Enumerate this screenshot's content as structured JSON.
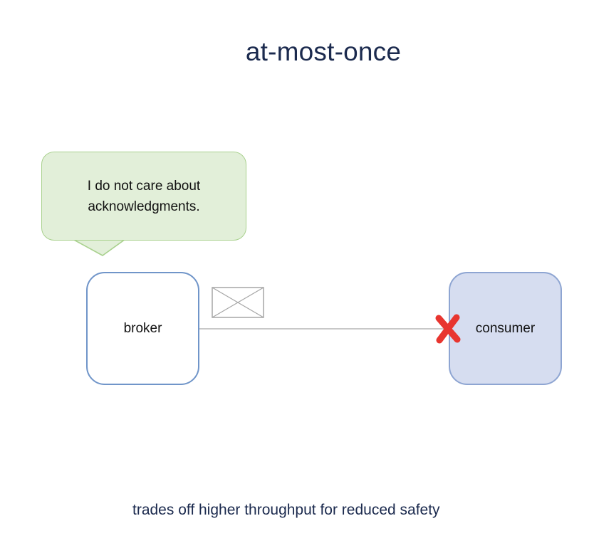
{
  "diagram": {
    "title": "at-most-once",
    "bubble_text": "I do not care about acknowledgments.",
    "broker_label": "broker",
    "consumer_label": "consumer",
    "footer": "trades off higher throughput for reduced safety",
    "icons": {
      "message": "envelope-icon",
      "failure": "red-x-icon"
    },
    "colors": {
      "title": "#1b2a4e",
      "bubble_fill": "#e2efd9",
      "bubble_border": "#a9d18e",
      "broker_border": "#7095c9",
      "consumer_fill": "#d6ddf0",
      "consumer_border": "#8ea5d2",
      "failure_mark": "#e8352f"
    }
  }
}
